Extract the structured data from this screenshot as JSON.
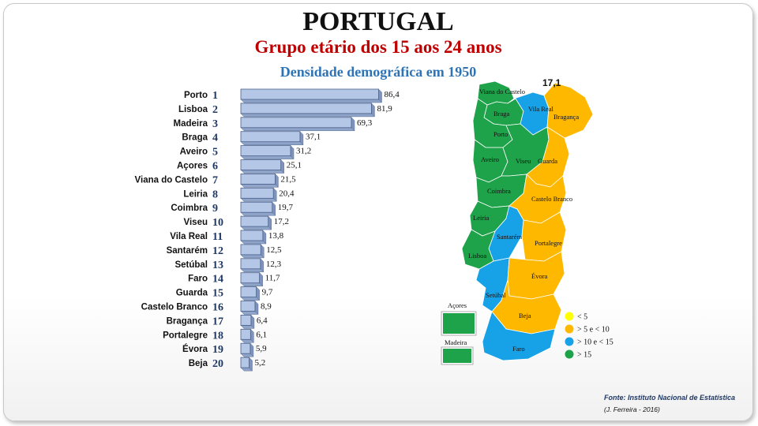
{
  "header": {
    "title": "PORTUGAL",
    "subtitle": "Grupo etário dos 15 aos 24 anos",
    "subtitle2": "Densidade demográfica em 1950"
  },
  "chart_data": [
    {
      "type": "bar",
      "orientation": "horizontal",
      "categories": [
        "Porto",
        "Lisboa",
        "Madeira",
        "Braga",
        "Aveiro",
        "Açores",
        "Viana do Castelo",
        "Leiria",
        "Coimbra",
        "Viseu",
        "Vila Real",
        "Santarém",
        "Setúbal",
        "Faro",
        "Guarda",
        "Castelo Branco",
        "Bragança",
        "Portalegre",
        "Évora",
        "Beja"
      ],
      "ranks": [
        "1",
        "2",
        "3",
        "4",
        "5",
        "6",
        "7",
        "8",
        "9",
        "10",
        "11",
        "12",
        "13",
        "14",
        "15",
        "16",
        "17",
        "18",
        "19",
        "20"
      ],
      "values": [
        86.4,
        81.9,
        69.3,
        37.1,
        31.2,
        25.1,
        21.5,
        20.4,
        19.7,
        17.2,
        13.8,
        12.5,
        12.3,
        11.7,
        9.7,
        8.9,
        6.4,
        6.1,
        5.9,
        5.2
      ],
      "value_labels": [
        "86,4",
        "81,9",
        "69,3",
        "37,1",
        "31,2",
        "25,1",
        "21,5",
        "20,4",
        "19,7",
        "17,2",
        "13,8",
        "12,5",
        "12,3",
        "11,7",
        "9,7",
        "8,9",
        "6,4",
        "6,1",
        "5,9",
        "5,2"
      ],
      "bar_color": "#b4c7e7"
    },
    {
      "type": "choropleth",
      "callout": "17,1",
      "regions": [
        {
          "name": "Viana do Castelo",
          "value": 21.5,
          "color": "#1ea24a"
        },
        {
          "name": "Braga",
          "value": 37.1,
          "color": "#1ea24a"
        },
        {
          "name": "Vila Real",
          "value": 13.8,
          "color": "#17a2e8"
        },
        {
          "name": "Bragança",
          "value": 6.4,
          "color": "#ffb800"
        },
        {
          "name": "Porto",
          "value": 86.4,
          "color": "#1ea24a"
        },
        {
          "name": "Aveiro",
          "value": 31.2,
          "color": "#1ea24a"
        },
        {
          "name": "Viseu",
          "value": 17.2,
          "color": "#1ea24a"
        },
        {
          "name": "Guarda",
          "value": 9.7,
          "color": "#ffb800"
        },
        {
          "name": "Coimbra",
          "value": 19.7,
          "color": "#1ea24a"
        },
        {
          "name": "Castelo Branco",
          "value": 8.9,
          "color": "#ffb800"
        },
        {
          "name": "Leiria",
          "value": 20.4,
          "color": "#1ea24a"
        },
        {
          "name": "Santarém",
          "value": 12.5,
          "color": "#17a2e8"
        },
        {
          "name": "Portalegre",
          "value": 6.1,
          "color": "#ffb800"
        },
        {
          "name": "Lisboa",
          "value": 81.9,
          "color": "#1ea24a"
        },
        {
          "name": "Setúbal",
          "value": 12.3,
          "color": "#17a2e8"
        },
        {
          "name": "Évora",
          "value": 5.9,
          "color": "#ffb800"
        },
        {
          "name": "Beja",
          "value": 5.2,
          "color": "#ffb800"
        },
        {
          "name": "Faro",
          "value": 11.7,
          "color": "#17a2e8"
        },
        {
          "name": "Açores",
          "value": 25.1,
          "color": "#1ea24a"
        },
        {
          "name": "Madeira",
          "value": 69.3,
          "color": "#1ea24a"
        }
      ],
      "legend": [
        {
          "label": "< 5",
          "color": "#ffff00"
        },
        {
          "label": "> 5 e < 10",
          "color": "#ffb800"
        },
        {
          "label": "> 10  e < 15",
          "color": "#17a2e8"
        },
        {
          "label": "> 15",
          "color": "#1ea24a"
        }
      ]
    }
  ],
  "footer": {
    "source": "Fonte: Instituto Nacional de Estatística",
    "author": "(J. Ferreira - 2016)"
  }
}
